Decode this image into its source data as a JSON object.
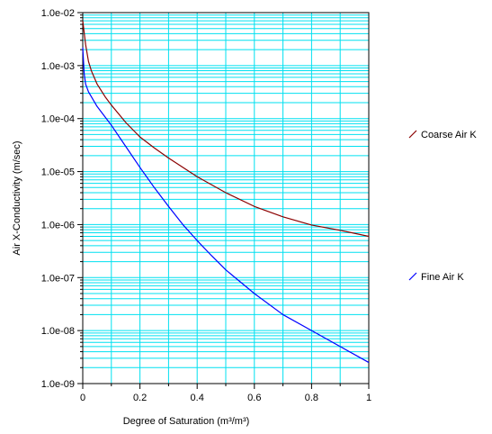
{
  "chart_data": {
    "type": "line",
    "xlabel": "Degree of Saturation (m³/m³)",
    "ylabel": "Air X-Conductivity (m/sec)",
    "xlim": [
      0,
      1
    ],
    "ylim": [
      1e-09,
      0.01
    ],
    "yscale": "log",
    "grid": true,
    "legend_position": "right",
    "x_ticks": [
      "0",
      "0.2",
      "0.4",
      "0.6",
      "0.8",
      "1"
    ],
    "y_ticks": [
      "1.0e-09",
      "1.0e-08",
      "1.0e-07",
      "1.0e-06",
      "1.0e-05",
      "1.0e-04",
      "1.0e-03",
      "1.0e-02"
    ],
    "colors": {
      "grid": "#00e0f0",
      "axis": "#000000"
    },
    "series": [
      {
        "name": "Coarse Air K",
        "color": "#8b0000",
        "points": [
          [
            0.0,
            0.007
          ],
          [
            0.01,
            0.0025
          ],
          [
            0.02,
            0.0012
          ],
          [
            0.03,
            0.0008
          ],
          [
            0.05,
            0.00045
          ],
          [
            0.08,
            0.00025
          ],
          [
            0.1,
            0.00018
          ],
          [
            0.15,
            8.5e-05
          ],
          [
            0.2,
            4.5e-05
          ],
          [
            0.25,
            2.8e-05
          ],
          [
            0.3,
            1.8e-05
          ],
          [
            0.35,
            1.2e-05
          ],
          [
            0.4,
            8e-06
          ],
          [
            0.5,
            4e-06
          ],
          [
            0.6,
            2.2e-06
          ],
          [
            0.7,
            1.4e-06
          ],
          [
            0.8,
            9.8e-07
          ],
          [
            0.9,
            7.8e-07
          ],
          [
            1.0,
            6e-07
          ]
        ]
      },
      {
        "name": "Fine Air K",
        "color": "#0000ff",
        "points": [
          [
            0.0,
            0.0022
          ],
          [
            0.005,
            0.0007
          ],
          [
            0.01,
            0.00045
          ],
          [
            0.02,
            0.00032
          ],
          [
            0.05,
            0.00017
          ],
          [
            0.1,
            7.5e-05
          ],
          [
            0.15,
            3e-05
          ],
          [
            0.2,
            1.2e-05
          ],
          [
            0.25,
            5e-06
          ],
          [
            0.3,
            2.2e-06
          ],
          [
            0.35,
            1e-06
          ],
          [
            0.4,
            5e-07
          ],
          [
            0.45,
            2.6e-07
          ],
          [
            0.5,
            1.4e-07
          ],
          [
            0.6,
            5e-08
          ],
          [
            0.7,
            2e-08
          ],
          [
            0.8,
            1e-08
          ],
          [
            0.9,
            5e-09
          ],
          [
            1.0,
            2.5e-09
          ]
        ]
      }
    ]
  }
}
